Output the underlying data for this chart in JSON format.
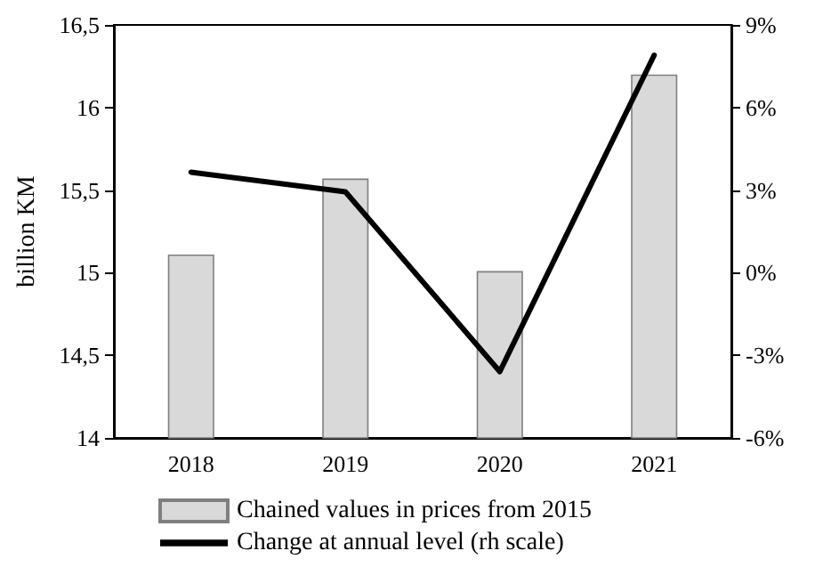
{
  "chart_data": {
    "type": "bar",
    "ylabel": "billion KM",
    "categories": [
      "2018",
      "2019",
      "2020",
      "2021"
    ],
    "series": [
      {
        "name": "Chained values in prices from 2015",
        "color": "#d9d9d9",
        "values": [
          15.11,
          15.57,
          15.01,
          16.2
        ]
      },
      {
        "name": "Change at annual level (rh scale)",
        "type": "line",
        "axis": "y2",
        "color": "#000000",
        "values": [
          3.65,
          2.94,
          -3.59,
          7.9
        ]
      }
    ],
    "ylim": [
      14,
      16.5
    ],
    "yticks": [
      14,
      {
        "value": 14.5,
        "label": "14,5"
      },
      15,
      {
        "value": 15.5,
        "label": "15,5"
      },
      16,
      {
        "value": 16.5,
        "label": "16,5"
      }
    ],
    "y2lim": [
      -6,
      9
    ],
    "y2ticks": [
      {
        "value": -6,
        "label": "-6%"
      },
      {
        "value": -3,
        "label": "-3%"
      },
      {
        "value": 0,
        "label": "0%"
      },
      {
        "value": 3,
        "label": "3%"
      },
      {
        "value": 6,
        "label": "6%"
      },
      {
        "value": 9,
        "label": "9%"
      }
    ],
    "legend": "bottom",
    "grid": false,
    "marker": "none",
    "line_style": "solid"
  }
}
